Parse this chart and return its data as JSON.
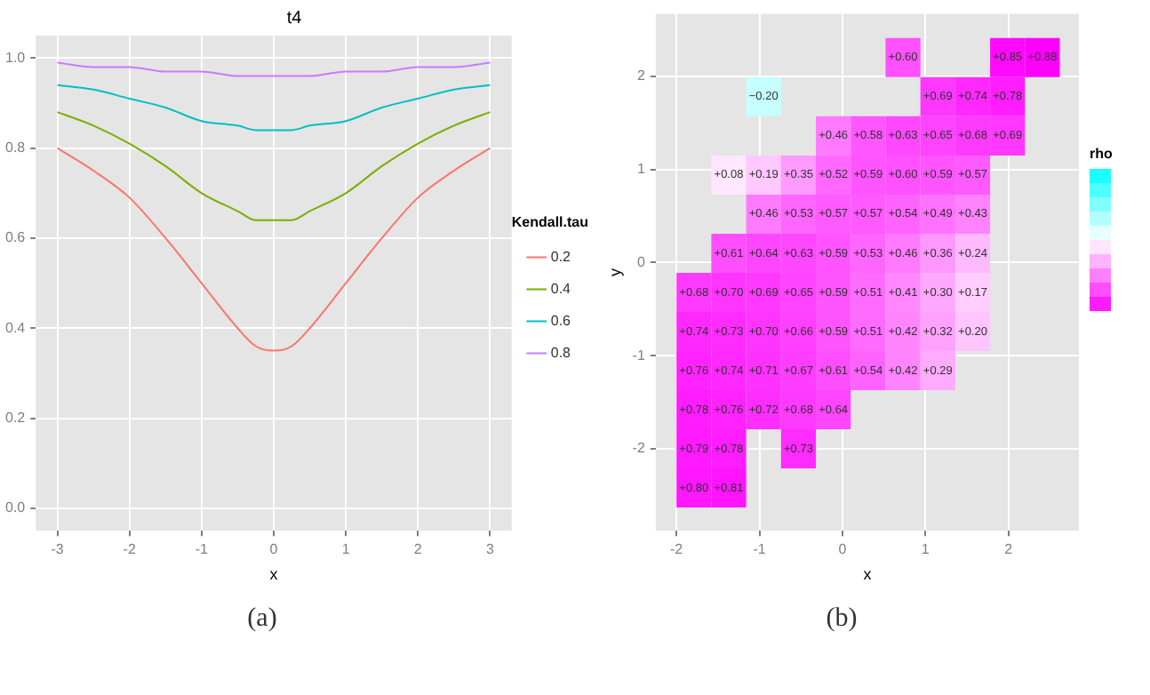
{
  "chart_data": [
    {
      "type": "line",
      "title": "t4",
      "xlabel": "x",
      "legend_title": "Kendall.tau",
      "legend": "right",
      "grid": true,
      "x": [
        -3,
        -2.5,
        -2,
        -1.5,
        -1,
        -0.5,
        -0.25,
        0,
        0.25,
        0.5,
        1,
        1.5,
        2,
        2.5,
        3
      ],
      "series": [
        {
          "name": "0.2",
          "color": "#f8766d",
          "values": [
            0.8,
            0.75,
            0.69,
            0.6,
            0.5,
            0.4,
            0.36,
            0.35,
            0.36,
            0.4,
            0.5,
            0.6,
            0.69,
            0.75,
            0.8
          ]
        },
        {
          "name": "0.4",
          "color": "#7cae00",
          "values": [
            0.88,
            0.85,
            0.81,
            0.76,
            0.7,
            0.66,
            0.64,
            0.64,
            0.64,
            0.66,
            0.7,
            0.76,
            0.81,
            0.85,
            0.88
          ]
        },
        {
          "name": "0.6",
          "color": "#00bfc4",
          "values": [
            0.94,
            0.93,
            0.91,
            0.89,
            0.86,
            0.85,
            0.84,
            0.84,
            0.84,
            0.85,
            0.86,
            0.89,
            0.91,
            0.93,
            0.94
          ]
        },
        {
          "name": "0.8",
          "color": "#c77cff",
          "values": [
            0.99,
            0.98,
            0.98,
            0.97,
            0.97,
            0.96,
            0.96,
            0.96,
            0.96,
            0.96,
            0.97,
            0.97,
            0.98,
            0.98,
            0.99
          ]
        }
      ],
      "xlim": [
        -3.3,
        3.3
      ],
      "xticks": [
        -3,
        -2,
        -1,
        0,
        1,
        2,
        3
      ],
      "ylim": [
        -0.05,
        1.05
      ],
      "yticks": [
        {
          "value": 0,
          "label": "0.0"
        },
        {
          "value": 0.2,
          "label": "0.2"
        },
        {
          "value": 0.4,
          "label": "0.4"
        },
        {
          "value": 0.6,
          "label": "0.6"
        },
        {
          "value": 0.8,
          "label": "0.8"
        },
        {
          "value": 1,
          "label": "1.0"
        }
      ],
      "annotations": [
        "(a)"
      ]
    },
    {
      "type": "heatmap",
      "xlabel": "x",
      "ylabel": "y",
      "clabel": "rho",
      "grid": true,
      "x": [
        -1.79,
        -1.37,
        -0.95,
        -0.53,
        -0.11,
        0.31,
        0.73,
        1.15,
        1.57,
        1.99,
        2.41
      ],
      "y": [
        2.2,
        1.78,
        1.36,
        0.94,
        0.52,
        0.1,
        -0.32,
        -0.74,
        -1.16,
        -1.58,
        -2.0,
        -2.42
      ],
      "cells": [
        [
          null,
          null,
          null,
          null,
          null,
          null,
          0.6,
          null,
          null,
          0.85,
          0.88
        ],
        [
          null,
          null,
          -0.2,
          null,
          null,
          null,
          null,
          0.69,
          0.74,
          0.78,
          null
        ],
        [
          null,
          null,
          null,
          null,
          0.46,
          0.58,
          0.63,
          0.65,
          0.68,
          0.69,
          null
        ],
        [
          null,
          0.08,
          0.19,
          0.35,
          0.52,
          0.59,
          0.6,
          0.59,
          0.57,
          null,
          null
        ],
        [
          null,
          null,
          0.46,
          0.53,
          0.57,
          0.57,
          0.54,
          0.49,
          0.43,
          null,
          null
        ],
        [
          null,
          0.61,
          0.64,
          0.63,
          0.59,
          0.53,
          0.46,
          0.36,
          0.24,
          null,
          null
        ],
        [
          0.68,
          0.7,
          0.69,
          0.65,
          0.59,
          0.51,
          0.41,
          0.3,
          0.17,
          null,
          null
        ],
        [
          0.74,
          0.73,
          0.7,
          0.66,
          0.59,
          0.51,
          0.42,
          0.32,
          0.2,
          null,
          null
        ],
        [
          0.76,
          0.74,
          0.71,
          0.67,
          0.61,
          0.54,
          0.42,
          0.29,
          null,
          null,
          null
        ],
        [
          0.78,
          0.76,
          0.72,
          0.68,
          0.64,
          null,
          null,
          null,
          null,
          null,
          null
        ],
        [
          0.79,
          0.78,
          null,
          0.73,
          null,
          null,
          null,
          null,
          null,
          null,
          null
        ],
        [
          0.8,
          0.81,
          null,
          null,
          null,
          null,
          null,
          null,
          null,
          null,
          null
        ]
      ],
      "cell_labels": [
        [
          null,
          null,
          null,
          null,
          null,
          null,
          "+0.60",
          null,
          null,
          "+0.85",
          "+0.88"
        ],
        [
          null,
          null,
          "−0.20",
          null,
          null,
          null,
          null,
          "+0.69",
          "+0.74",
          "+0.78",
          null
        ],
        [
          null,
          null,
          null,
          null,
          "+0.46",
          "+0.58",
          "+0.63",
          "+0.65",
          "+0.68",
          "+0.69",
          null
        ],
        [
          null,
          "+0.08",
          "+0.19",
          "+0.35",
          "+0.52",
          "+0.59",
          "+0.60",
          "+0.59",
          "+0.57",
          null,
          null
        ],
        [
          null,
          null,
          "+0.46",
          "+0.53",
          "+0.57",
          "+0.57",
          "+0.54",
          "+0.49",
          "+0.43",
          null,
          null
        ],
        [
          null,
          "+0.61",
          "+0.64",
          "+0.63",
          "+0.59",
          "+0.53",
          "+0.46",
          "+0.36",
          "+0.24",
          null,
          null
        ],
        [
          "+0.68",
          "+0.70",
          "+0.69",
          "+0.65",
          "+0.59",
          "+0.51",
          "+0.41",
          "+0.30",
          "+0.17",
          null,
          null
        ],
        [
          "+0.74",
          "+0.73",
          "+0.70",
          "+0.66",
          "+0.59",
          "+0.51",
          "+0.42",
          "+0.32",
          "+0.20",
          null,
          null
        ],
        [
          "+0.76",
          "+0.74",
          "+0.71",
          "+0.67",
          "+0.61",
          "+0.54",
          "+0.42",
          "+0.29",
          null,
          null,
          null
        ],
        [
          "+0.78",
          "+0.76",
          "+0.72",
          "+0.68",
          "+0.64",
          null,
          null,
          null,
          null,
          null,
          null
        ],
        [
          "+0.79",
          "+0.78",
          null,
          "+0.73",
          null,
          null,
          null,
          null,
          null,
          null,
          null
        ],
        [
          "+0.80",
          "+0.81",
          null,
          null,
          null,
          null,
          null,
          null,
          null,
          null,
          null
        ]
      ],
      "xlim": [
        -2.25,
        2.85
      ],
      "xticks": [
        -2,
        -1,
        0,
        1,
        2
      ],
      "ylim": [
        -2.88,
        2.67
      ],
      "yticks": [
        -2,
        -1,
        0,
        1,
        2
      ],
      "annotations": [
        "(b)"
      ]
    }
  ]
}
